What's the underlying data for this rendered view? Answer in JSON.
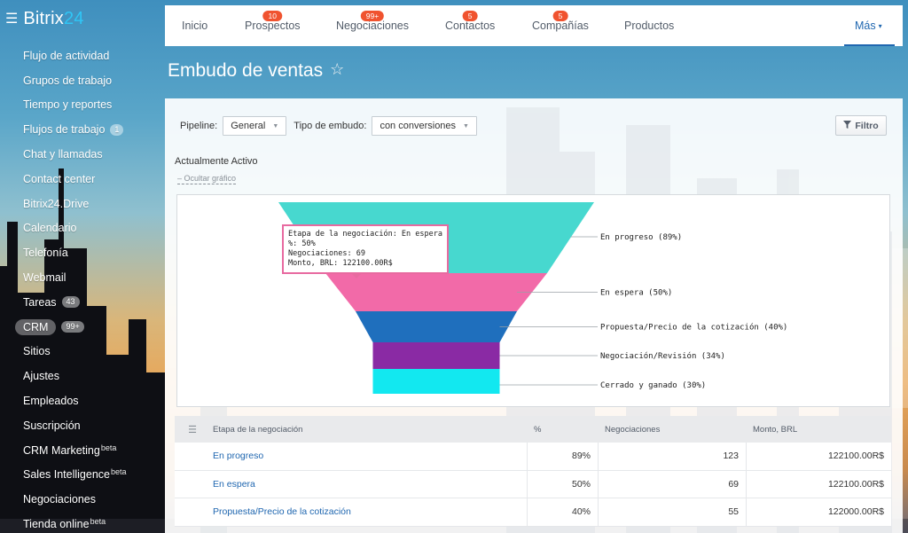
{
  "sidebar": {
    "logo_prefix": "Bitrix",
    "logo_suffix": "24",
    "items": [
      {
        "label": "Flujo de actividad"
      },
      {
        "label": "Grupos de trabajo"
      },
      {
        "label": "Tiempo y reportes"
      },
      {
        "label": "Flujos de trabajo",
        "counter": "1"
      },
      {
        "label": "Chat y llamadas"
      },
      {
        "label": "Contact center"
      },
      {
        "label": "Bitrix24.Drive"
      },
      {
        "label": "Calendario"
      },
      {
        "label": "Telefonía"
      },
      {
        "label": "Webmail"
      },
      {
        "label": "Tareas",
        "counter": "43"
      },
      {
        "label": "CRM",
        "counter": "99+",
        "active": true
      },
      {
        "label": "Sitios"
      },
      {
        "label": "Ajustes"
      },
      {
        "label": "Empleados"
      },
      {
        "label": "Suscripción"
      },
      {
        "label": "CRM Marketing",
        "sup": "beta"
      },
      {
        "label": "Sales Intelligence",
        "sup": "beta"
      },
      {
        "label": "Negociaciones"
      },
      {
        "label": "Tienda online",
        "sup": "beta"
      }
    ]
  },
  "tabs": [
    {
      "label": "Inicio"
    },
    {
      "label": "Prospectos",
      "badge": "10"
    },
    {
      "label": "Negociaciones",
      "badge": "99+"
    },
    {
      "label": "Contactos",
      "badge": "5"
    },
    {
      "label": "Compañías",
      "badge": "5"
    },
    {
      "label": "Productos"
    },
    {
      "label": "Más",
      "more": true
    }
  ],
  "page": {
    "title": "Embudo de ventas",
    "star": "☆"
  },
  "filters": {
    "pipeline_label": "Pipeline:",
    "pipeline_value": "General",
    "type_label": "Tipo de embudo:",
    "type_value": "con conversiones",
    "filter_button": "Filtro"
  },
  "chart_section": {
    "title": "Actualmente Activo",
    "hide_link": "– Ocultar gráfico"
  },
  "tooltip": {
    "line1": "Etapa de la negociación: En espera",
    "line2": "%: 50%",
    "line3": "Negociaciones: 69",
    "line4": "Monto, BRL: 122100.00R$"
  },
  "chart_data": {
    "type": "funnel",
    "stages": [
      {
        "label": "En progreso (89%)",
        "percent": 89,
        "color": "#47d8cf"
      },
      {
        "label": "En espera (50%)",
        "percent": 50,
        "color": "#f26aa8"
      },
      {
        "label": "Propuesta/Precio de la cotización (40%)",
        "percent": 40,
        "color": "#1f6fbd"
      },
      {
        "label": "Negociación/Revisión (34%)",
        "percent": 34,
        "color": "#8a2aa4"
      },
      {
        "label": "Cerrado y ganado (30%)",
        "percent": 30,
        "color": "#12e8f0"
      }
    ]
  },
  "table": {
    "headers": [
      "Etapa de la negociación",
      "%",
      "Negociaciones",
      "Monto, BRL"
    ],
    "rows": [
      {
        "stage": "En progreso",
        "percent": "89%",
        "deals": "123",
        "amount": "122100.00R$"
      },
      {
        "stage": "En espera",
        "percent": "50%",
        "deals": "69",
        "amount": "122100.00R$"
      },
      {
        "stage": "Propuesta/Precio de la cotización",
        "percent": "40%",
        "deals": "55",
        "amount": "122000.00R$"
      }
    ]
  }
}
